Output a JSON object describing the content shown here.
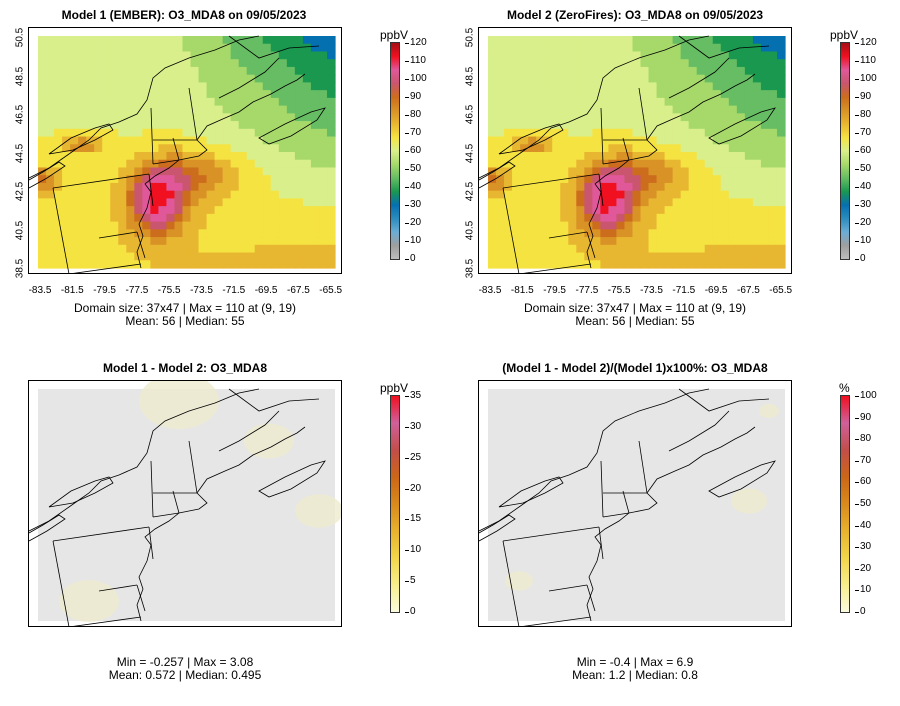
{
  "panels": [
    {
      "title": "Model 1 (EMBER): O3_MDA8 on 09/05/2023",
      "stats_line1": "Domain size: 37x47 | Max = 110 at (9, 19)",
      "stats_line2": "Mean: 56 |  Median: 55",
      "unit": "ppbV",
      "colorbar_ticks": [
        "0",
        "10",
        "20",
        "30",
        "40",
        "50",
        "60",
        "70",
        "80",
        "90",
        "100",
        "110",
        "120"
      ],
      "colorbar_colors": [
        "#bdbdbd",
        "#9e9e9e",
        "#6baed6",
        "#2b8cbe",
        "#0570b0",
        "#1a9850",
        "#66bd63",
        "#a6d96a",
        "#d9ef8b",
        "#f5e342",
        "#e8b731",
        "#d99226",
        "#cc6d1d",
        "#c9566e",
        "#e0589a",
        "#f01020",
        "#a50f15"
      ],
      "x_ticks": [
        "-83.5",
        "-81.5",
        "-79.5",
        "-77.5",
        "-75.5",
        "-73.5",
        "-71.5",
        "-69.5",
        "-67.5",
        "-65.5"
      ],
      "y_ticks": [
        "38.5",
        "40.5",
        "42.5",
        "44.5",
        "46.5",
        "48.5",
        "50.5"
      ]
    },
    {
      "title": "Model 2 (ZeroFires): O3_MDA8 on 09/05/2023",
      "stats_line1": "Domain size: 37x47 | Max = 110 at (9, 19)",
      "stats_line2": "Mean: 56 |  Median: 55",
      "unit": "ppbV",
      "colorbar_ticks": [
        "0",
        "10",
        "20",
        "30",
        "40",
        "50",
        "60",
        "70",
        "80",
        "90",
        "100",
        "110",
        "120"
      ],
      "x_ticks": [
        "-83.5",
        "-81.5",
        "-79.5",
        "-77.5",
        "-75.5",
        "-73.5",
        "-71.5",
        "-69.5",
        "-67.5",
        "-65.5"
      ],
      "y_ticks": [
        "38.5",
        "40.5",
        "42.5",
        "44.5",
        "46.5",
        "48.5",
        "50.5"
      ]
    },
    {
      "title": "Model 1 - Model 2: O3_MDA8",
      "stats_line1": "Min = -0.257 | Max = 3.08",
      "stats_line2": "Mean: 0.572 |  Median: 0.495",
      "unit": "ppbV",
      "colorbar_ticks": [
        "0",
        "5",
        "10",
        "15",
        "20",
        "25",
        "30",
        "35"
      ]
    },
    {
      "title": "(Model 1 - Model 2)/(Model 1)x100%: O3_MDA8",
      "stats_line1": "Min = -0.4 | Max = 6.9",
      "stats_line2": "Mean: 1.2 |  Median: 0.8",
      "unit": "%",
      "colorbar_ticks": [
        "0",
        "10",
        "20",
        "30",
        "40",
        "50",
        "60",
        "70",
        "80",
        "90",
        "100"
      ]
    }
  ],
  "colors": {
    "diff_background": "#e6e6e6",
    "diff_tint": "#efebd0"
  }
}
